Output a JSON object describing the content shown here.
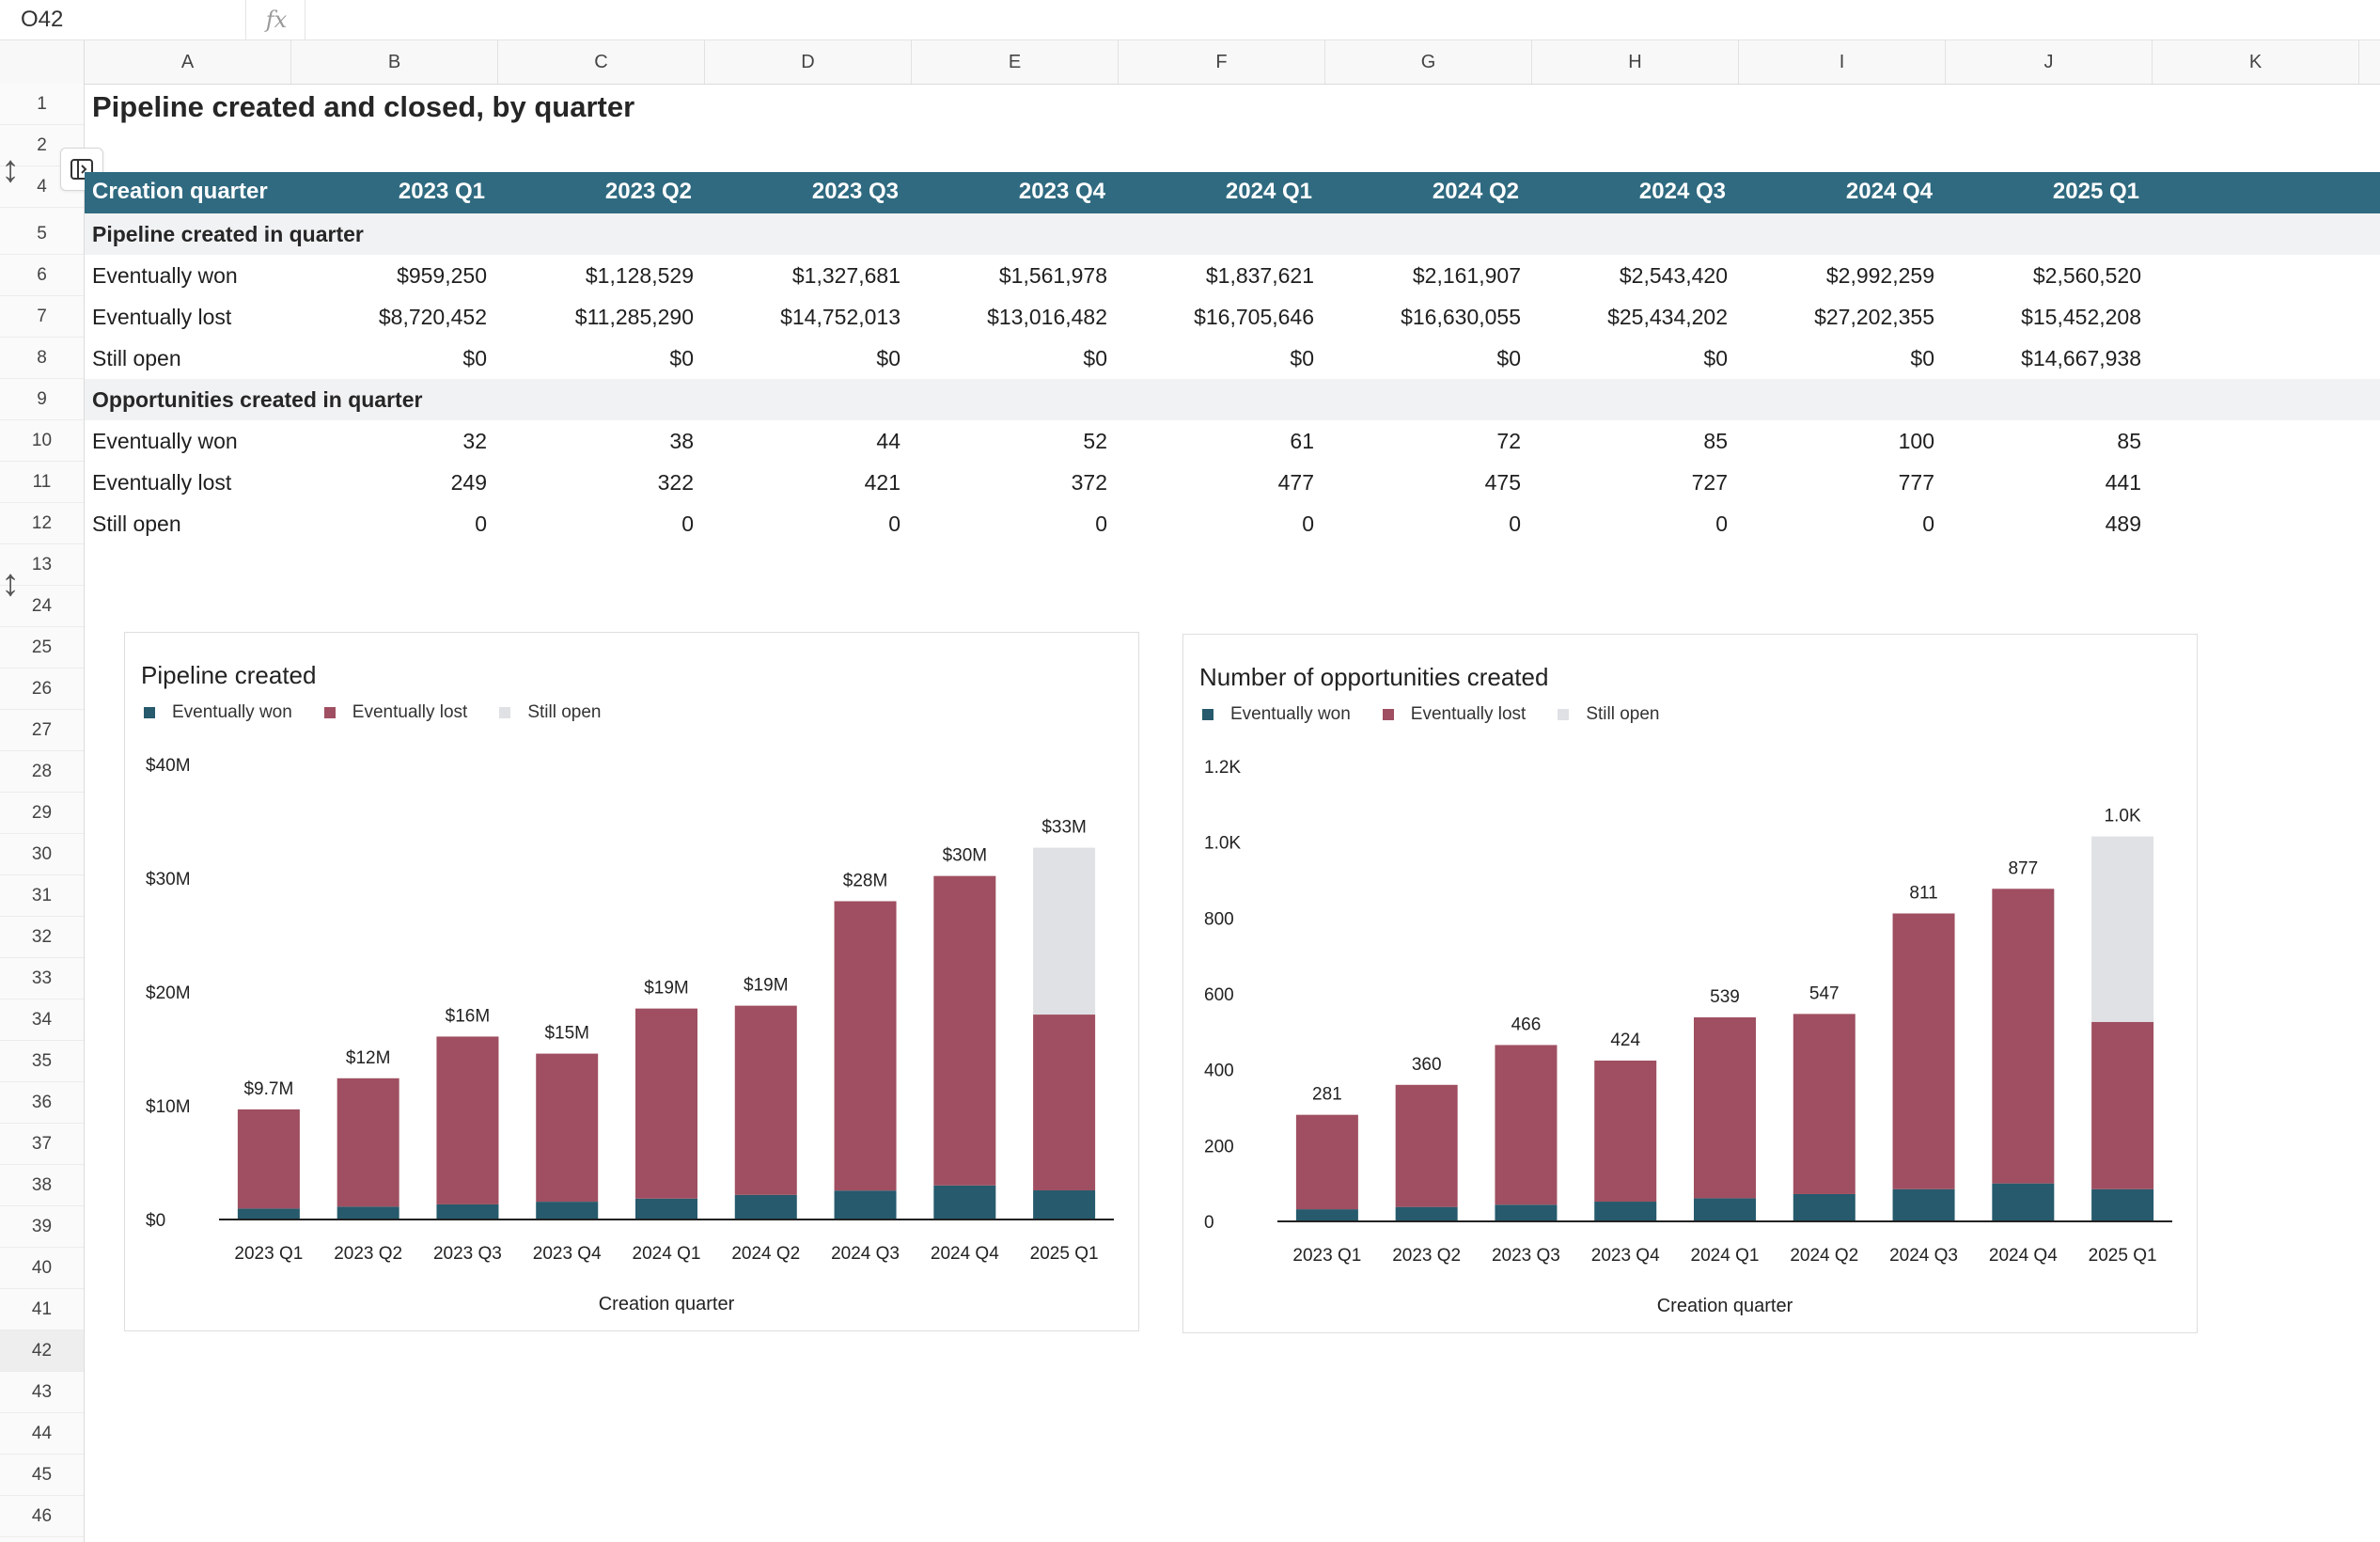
{
  "formula_bar": {
    "cell_ref": "O42",
    "fx_label": "fx",
    "formula": ""
  },
  "columns": [
    "A",
    "B",
    "C",
    "D",
    "E",
    "F",
    "G",
    "H",
    "I",
    "J",
    "K"
  ],
  "rows": [
    "1",
    "2",
    "4",
    "5",
    "6",
    "7",
    "8",
    "9",
    "10",
    "11",
    "12",
    "13",
    "24",
    "25",
    "26",
    "27",
    "28",
    "29",
    "30",
    "31",
    "32",
    "33",
    "34",
    "35",
    "36",
    "37",
    "38",
    "39",
    "40",
    "41",
    "42",
    "43",
    "44",
    "45",
    "46"
  ],
  "selected_row": "42",
  "sheet": {
    "title": "Pipeline created and closed, by quarter",
    "header_label": "Creation quarter",
    "quarters": [
      "2023 Q1",
      "2023 Q2",
      "2023 Q3",
      "2023 Q4",
      "2024 Q1",
      "2024 Q2",
      "2024 Q3",
      "2024 Q4",
      "2025 Q1"
    ],
    "section_pipeline": "Pipeline created in quarter",
    "pipeline_rows": [
      {
        "label": "Eventually won",
        "values": [
          "$959,250",
          "$1,128,529",
          "$1,327,681",
          "$1,561,978",
          "$1,837,621",
          "$2,161,907",
          "$2,543,420",
          "$2,992,259",
          "$2,560,520"
        ]
      },
      {
        "label": "Eventually lost",
        "values": [
          "$8,720,452",
          "$11,285,290",
          "$14,752,013",
          "$13,016,482",
          "$16,705,646",
          "$16,630,055",
          "$25,434,202",
          "$27,202,355",
          "$15,452,208"
        ]
      },
      {
        "label": "Still open",
        "values": [
          "$0",
          "$0",
          "$0",
          "$0",
          "$0",
          "$0",
          "$0",
          "$0",
          "$14,667,938"
        ]
      }
    ],
    "section_opps": "Opportunities created in quarter",
    "opps_rows": [
      {
        "label": "Eventually won",
        "values": [
          "32",
          "38",
          "44",
          "52",
          "61",
          "72",
          "85",
          "100",
          "85"
        ]
      },
      {
        "label": "Eventually lost",
        "values": [
          "249",
          "322",
          "421",
          "372",
          "477",
          "475",
          "727",
          "777",
          "441"
        ]
      },
      {
        "label": "Still open",
        "values": [
          "0",
          "0",
          "0",
          "0",
          "0",
          "0",
          "0",
          "0",
          "489"
        ]
      }
    ]
  },
  "chart_data": [
    {
      "type": "bar",
      "stacked": true,
      "title": "Pipeline created",
      "xlabel": "Creation quarter",
      "ylabel": "",
      "categories": [
        "2023 Q1",
        "2023 Q2",
        "2023 Q3",
        "2023 Q4",
        "2024 Q1",
        "2024 Q2",
        "2024 Q3",
        "2024 Q4",
        "2025 Q1"
      ],
      "series": [
        {
          "name": "Eventually won",
          "color": "#265a6c",
          "values": [
            959250,
            1128529,
            1327681,
            1561978,
            1837621,
            2161907,
            2543420,
            2992259,
            2560520
          ]
        },
        {
          "name": "Eventually lost",
          "color": "#9f4f61",
          "values": [
            8720452,
            11285290,
            14752013,
            13016482,
            16705646,
            16630055,
            25434202,
            27202355,
            15452208
          ]
        },
        {
          "name": "Still open",
          "color": "#dfe1e4",
          "values": [
            0,
            0,
            0,
            0,
            0,
            0,
            0,
            0,
            14667938
          ]
        }
      ],
      "total_labels": [
        "$9.7M",
        "$12M",
        "$16M",
        "$15M",
        "$19M",
        "$19M",
        "$28M",
        "$30M",
        "$33M"
      ],
      "yticks": [
        0,
        10000000,
        20000000,
        30000000,
        40000000
      ],
      "ytick_labels": [
        "$0",
        "$10M",
        "$20M",
        "$30M",
        "$40M"
      ],
      "ylim": [
        0,
        40000000
      ],
      "legend_position": "top-left"
    },
    {
      "type": "bar",
      "stacked": true,
      "title": "Number of opportunities created",
      "xlabel": "Creation quarter",
      "ylabel": "",
      "categories": [
        "2023 Q1",
        "2023 Q2",
        "2023 Q3",
        "2023 Q4",
        "2024 Q1",
        "2024 Q2",
        "2024 Q3",
        "2024 Q4",
        "2025 Q1"
      ],
      "series": [
        {
          "name": "Eventually won",
          "color": "#265a6c",
          "values": [
            32,
            38,
            44,
            52,
            61,
            72,
            85,
            100,
            85
          ]
        },
        {
          "name": "Eventually lost",
          "color": "#9f4f61",
          "values": [
            249,
            322,
            421,
            372,
            477,
            475,
            727,
            777,
            441
          ]
        },
        {
          "name": "Still open",
          "color": "#dfe1e4",
          "values": [
            0,
            0,
            0,
            0,
            0,
            0,
            0,
            0,
            489
          ]
        }
      ],
      "total_labels": [
        "281",
        "360",
        "466",
        "424",
        "539",
        "547",
        "811",
        "877",
        "1.0K"
      ],
      "yticks": [
        0,
        200,
        400,
        600,
        800,
        1000,
        1200
      ],
      "ytick_labels": [
        "0",
        "200",
        "400",
        "600",
        "800",
        "1.0K",
        "1.2K"
      ],
      "ylim": [
        0,
        1200
      ],
      "legend_position": "top-left"
    }
  ]
}
